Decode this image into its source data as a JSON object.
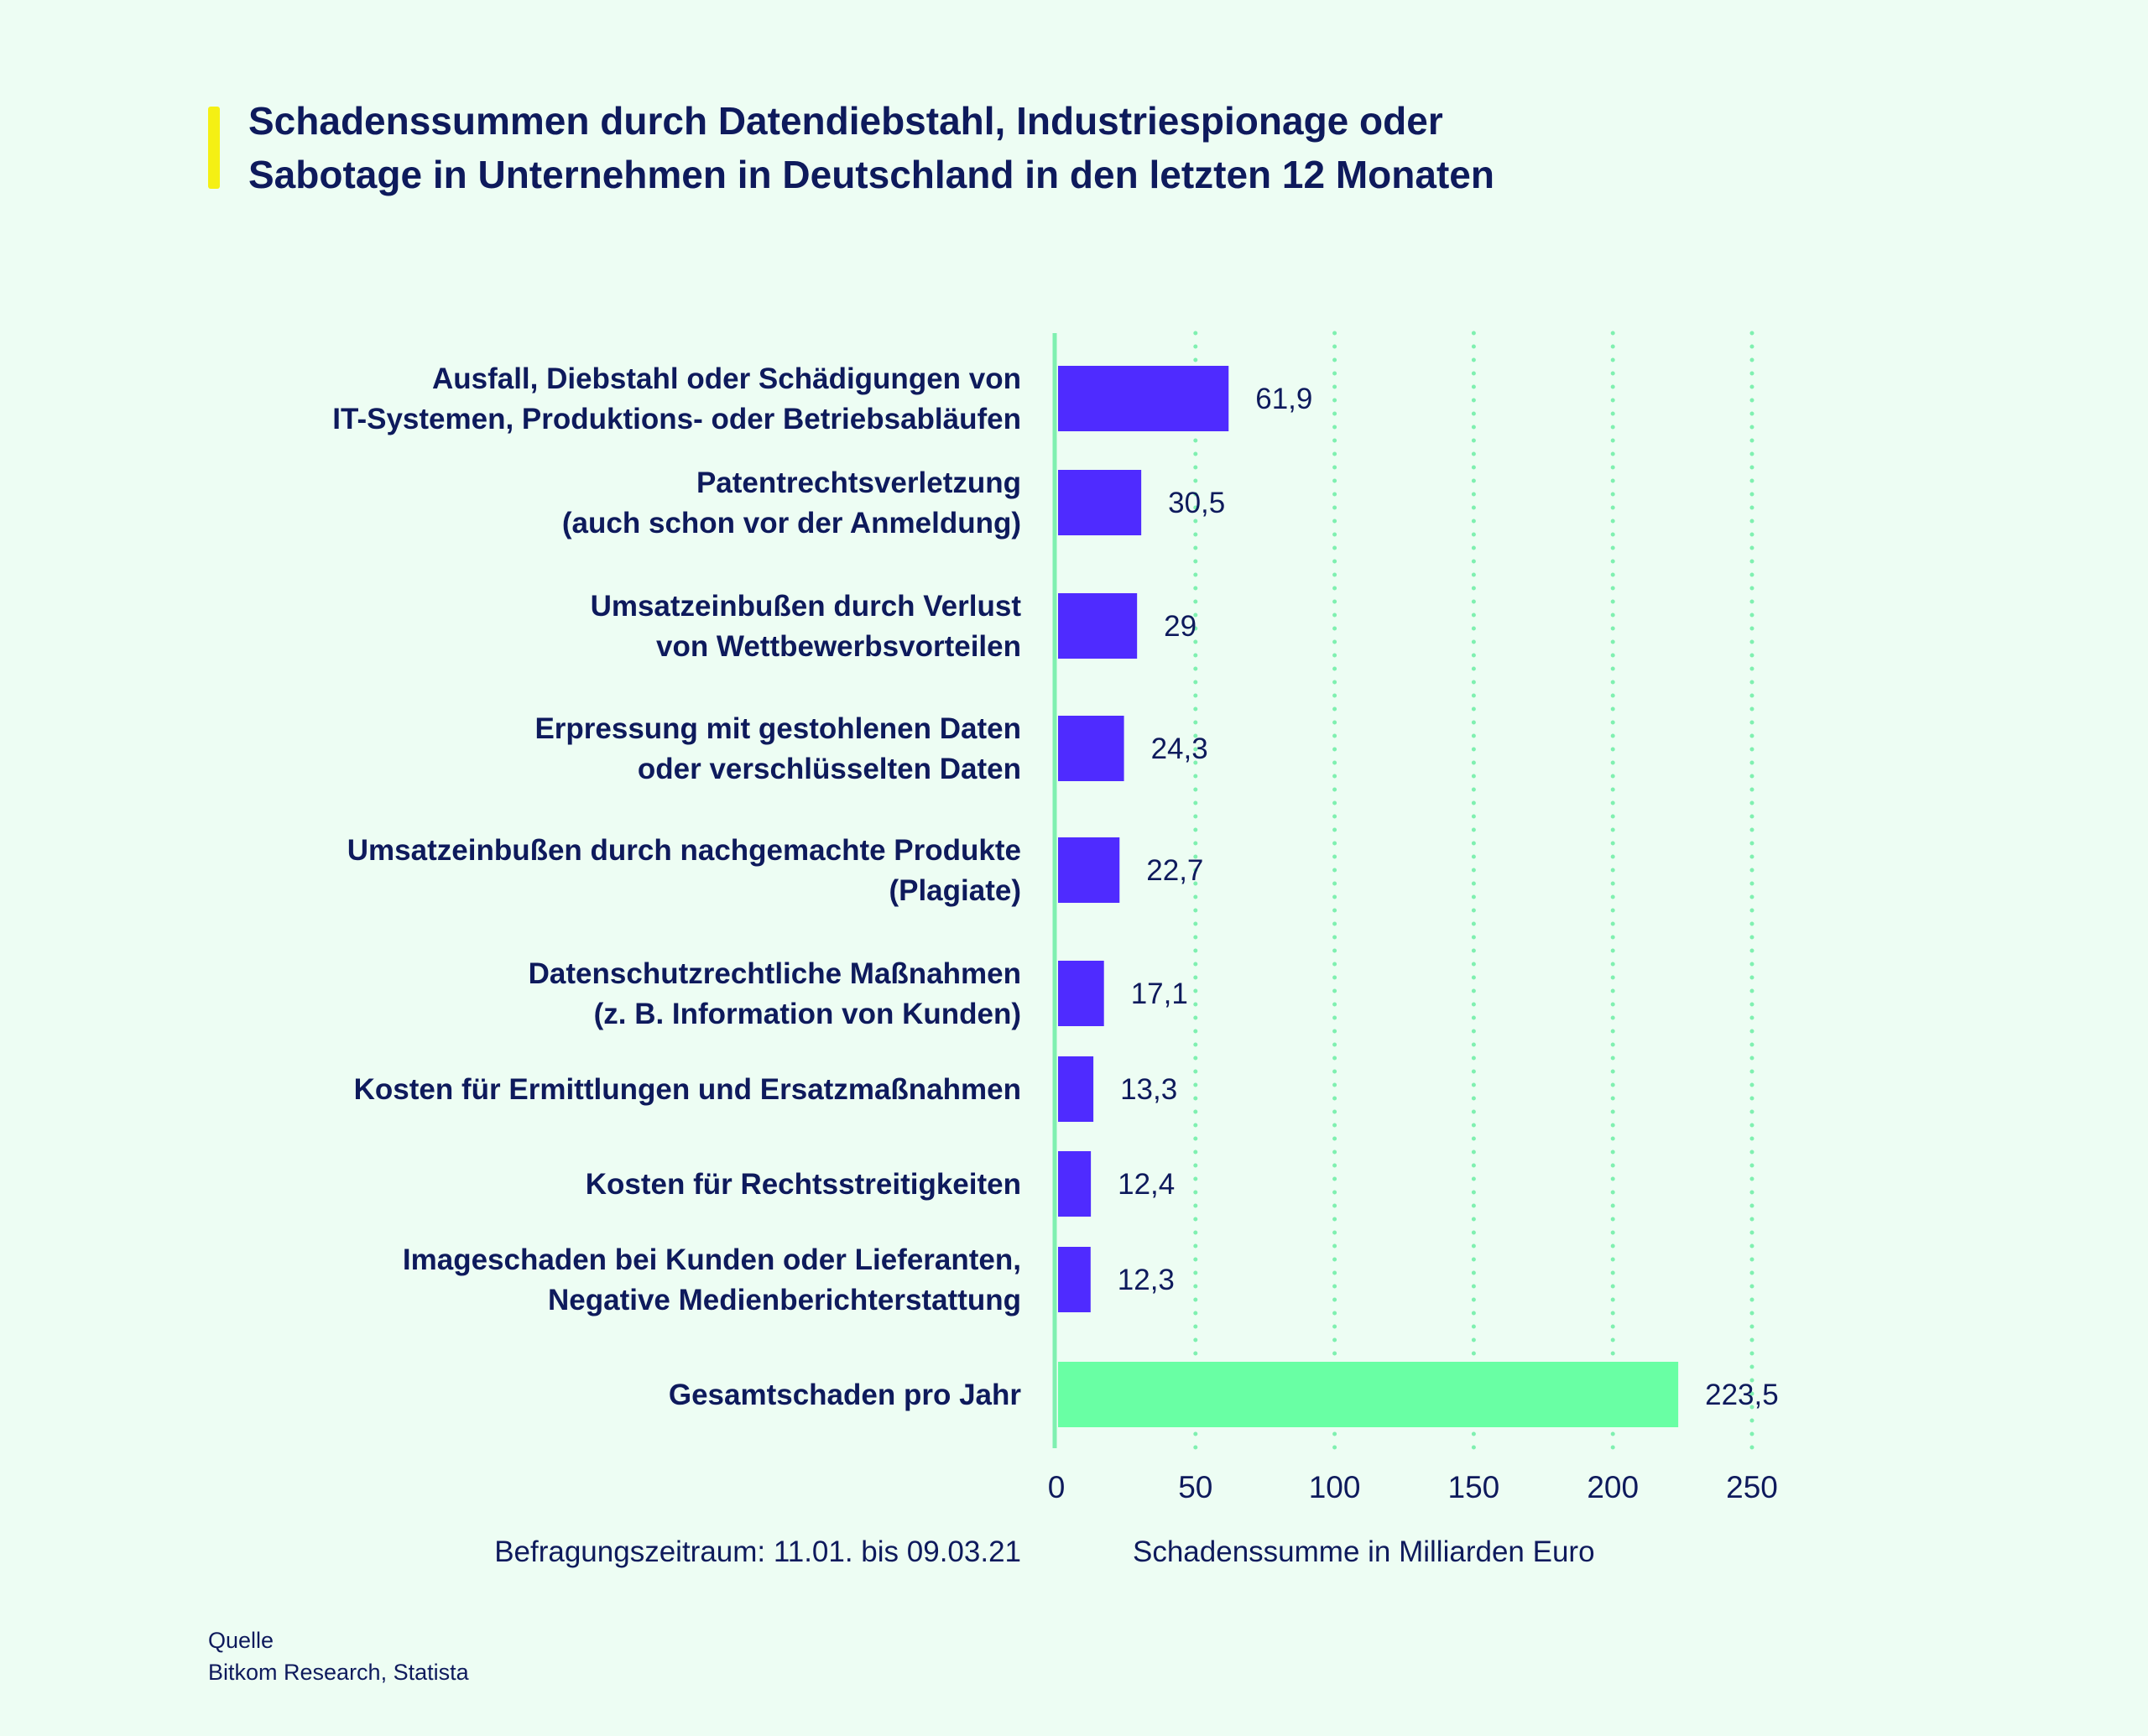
{
  "chart_data": {
    "type": "bar",
    "orientation": "horizontal",
    "title": "Schadenssummen durch Datendiebstahl, Industriespionage oder Sabotage in Unternehmen in Deutschland in den letzten 12 Monaten",
    "title_lines": [
      "Schadenssummen durch Datendiebstahl, Industriespionage oder",
      "Sabotage in Unternehmen in Deutschland in den letzten 12 Monaten"
    ],
    "categories": [
      [
        "Ausfall, Diebstahl oder Schädigungen von",
        "IT-Systemen, Produktions- oder Betriebsabläufen"
      ],
      [
        "Patentrechtsverletzung",
        "(auch schon vor der Anmeldung)"
      ],
      [
        "Umsatzeinbußen durch Verlust",
        "von Wettbewerbsvorteilen"
      ],
      [
        "Erpressung mit gestohlenen Daten",
        "oder verschlüsselten Daten"
      ],
      [
        "Umsatzeinbußen durch nachgemachte Produkte",
        "(Plagiate)"
      ],
      [
        "Datenschutzrechtliche Maßnahmen",
        "(z. B. Information von Kunden)"
      ],
      [
        "Kosten für Ermittlungen und Ersatzmaßnahmen"
      ],
      [
        "Kosten für Rechtsstreitigkeiten"
      ],
      [
        "Imageschaden bei Kunden oder Lieferanten,",
        "Negative Medienberichterstattung"
      ],
      [
        "Gesamtschaden pro Jahr"
      ]
    ],
    "values": [
      61.9,
      30.5,
      29,
      24.3,
      22.7,
      17.1,
      13.3,
      12.4,
      12.3,
      223.5
    ],
    "value_labels": [
      "61,9",
      "30,5",
      "29",
      "24,3",
      "22,7",
      "17,1",
      "13,3",
      "12,4",
      "12,3",
      "223,5"
    ],
    "xlabel": "Schadenssumme in Milliarden Euro",
    "xlim": [
      0,
      250
    ],
    "xticks": [
      "0",
      "50",
      "100",
      "150",
      "200",
      "250"
    ],
    "grid": "vertical dotted",
    "colors": {
      "bar": "#4f2bff",
      "total_bar": "#69ffa4",
      "grid": "#7ff0b0",
      "text": "#0e1a5c",
      "accent": "#f5f014",
      "background": "#edfdf3"
    }
  },
  "notes": {
    "period": "Befragungszeitraum: 11.01. bis 09.03.21",
    "source_label": "Quelle",
    "source": "Bitkom Research, Statista"
  }
}
